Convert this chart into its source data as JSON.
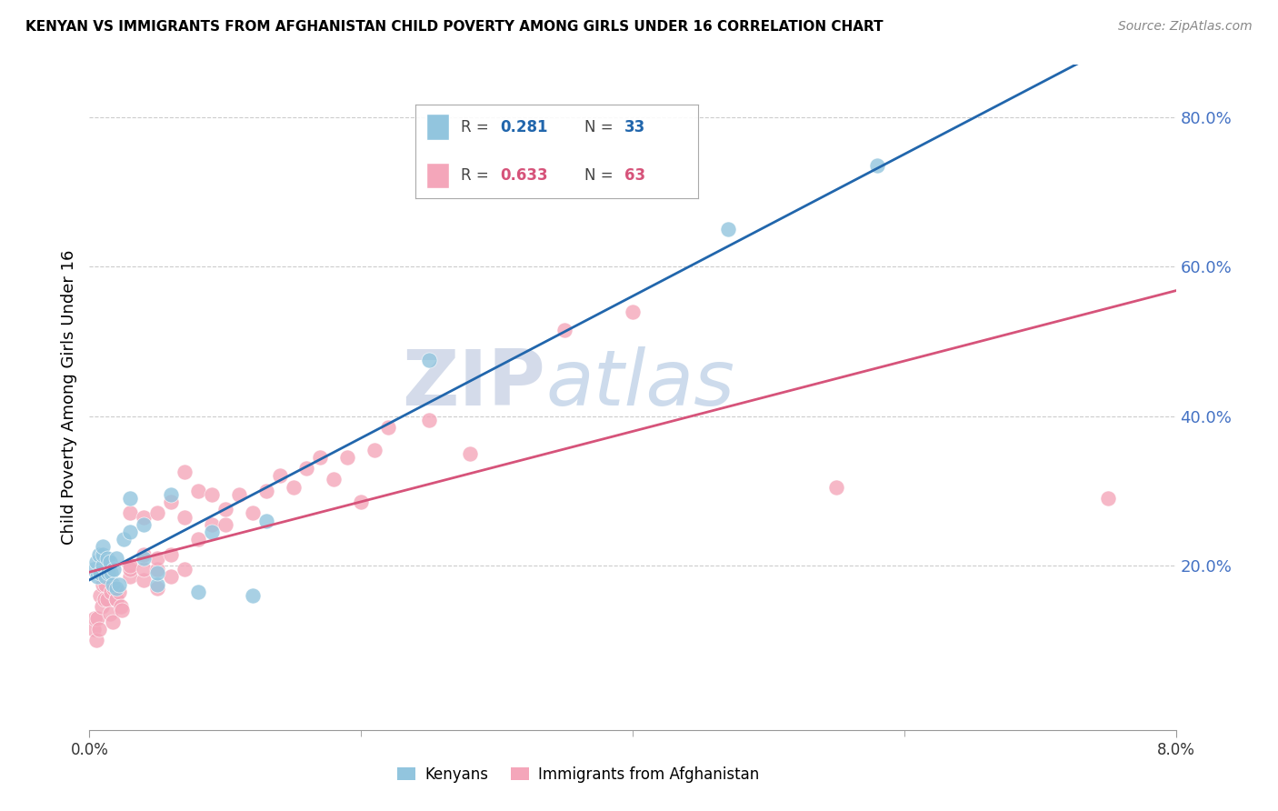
{
  "title": "KENYAN VS IMMIGRANTS FROM AFGHANISTAN CHILD POVERTY AMONG GIRLS UNDER 16 CORRELATION CHART",
  "source": "Source: ZipAtlas.com",
  "ylabel": "Child Poverty Among Girls Under 16",
  "xlim": [
    0.0,
    0.08
  ],
  "ylim": [
    -0.02,
    0.87
  ],
  "legend_kenya_R": "0.281",
  "legend_kenya_N": "33",
  "legend_afg_R": "0.633",
  "legend_afg_N": "63",
  "kenya_color": "#92c5de",
  "afg_color": "#f4a6ba",
  "kenya_line_color": "#2166ac",
  "afg_line_color": "#d6537a",
  "ytick_color": "#4472c4",
  "watermark_zip": "ZIP",
  "watermark_atlas": "atlas",
  "kenya_x": [
    0.0003,
    0.0005,
    0.0006,
    0.0007,
    0.0008,
    0.001,
    0.001,
    0.001,
    0.0012,
    0.0013,
    0.0014,
    0.0015,
    0.0016,
    0.0017,
    0.0018,
    0.002,
    0.002,
    0.0022,
    0.0025,
    0.003,
    0.003,
    0.004,
    0.004,
    0.005,
    0.005,
    0.006,
    0.008,
    0.009,
    0.012,
    0.013,
    0.025,
    0.047,
    0.058
  ],
  "kenya_y": [
    0.195,
    0.205,
    0.185,
    0.215,
    0.19,
    0.2,
    0.215,
    0.225,
    0.185,
    0.21,
    0.19,
    0.205,
    0.19,
    0.175,
    0.195,
    0.17,
    0.21,
    0.175,
    0.235,
    0.245,
    0.29,
    0.21,
    0.255,
    0.175,
    0.19,
    0.295,
    0.165,
    0.245,
    0.16,
    0.26,
    0.475,
    0.65,
    0.735
  ],
  "afg_x": [
    0.0003,
    0.0004,
    0.0005,
    0.0006,
    0.0007,
    0.0008,
    0.0009,
    0.001,
    0.001,
    0.0011,
    0.0012,
    0.0013,
    0.0015,
    0.0016,
    0.0017,
    0.0018,
    0.002,
    0.002,
    0.0022,
    0.0023,
    0.0024,
    0.003,
    0.003,
    0.003,
    0.003,
    0.004,
    0.004,
    0.004,
    0.004,
    0.005,
    0.005,
    0.005,
    0.005,
    0.006,
    0.006,
    0.006,
    0.007,
    0.007,
    0.007,
    0.008,
    0.008,
    0.009,
    0.009,
    0.01,
    0.01,
    0.011,
    0.012,
    0.013,
    0.014,
    0.015,
    0.016,
    0.017,
    0.018,
    0.019,
    0.02,
    0.021,
    0.022,
    0.025,
    0.028,
    0.035,
    0.04,
    0.055,
    0.075
  ],
  "afg_y": [
    0.115,
    0.13,
    0.1,
    0.13,
    0.115,
    0.16,
    0.145,
    0.175,
    0.195,
    0.155,
    0.175,
    0.155,
    0.135,
    0.165,
    0.125,
    0.17,
    0.155,
    0.155,
    0.165,
    0.145,
    0.14,
    0.185,
    0.195,
    0.2,
    0.27,
    0.18,
    0.195,
    0.215,
    0.265,
    0.17,
    0.195,
    0.21,
    0.27,
    0.185,
    0.215,
    0.285,
    0.195,
    0.265,
    0.325,
    0.235,
    0.3,
    0.255,
    0.295,
    0.255,
    0.275,
    0.295,
    0.27,
    0.3,
    0.32,
    0.305,
    0.33,
    0.345,
    0.315,
    0.345,
    0.285,
    0.355,
    0.385,
    0.395,
    0.35,
    0.515,
    0.54,
    0.305,
    0.29
  ]
}
